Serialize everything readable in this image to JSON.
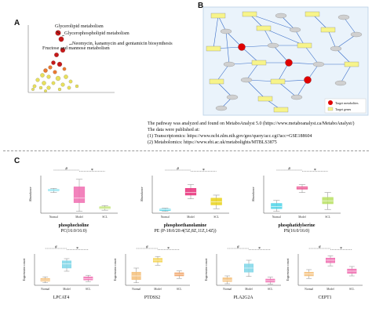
{
  "panels": {
    "a": "A",
    "b": "B",
    "c": "C"
  },
  "panel_a": {
    "annotations": [
      "Glycerolipid metabolism",
      "Glycerophospholipid metabolism",
      "Neomycin, kanamycin and gentamicin biosynthesis",
      "Fructose and mannose metabolism"
    ],
    "colors": {
      "high": "#c00000",
      "mid": "#e86a1a",
      "low": "#e6dd4a"
    }
  },
  "panel_b": {
    "legend": [
      "Target metabolites",
      "Target genes"
    ],
    "colors": {
      "metabolite": "#e00000",
      "gene": "#f7f48a",
      "node": "#d0d0d0",
      "edge": "#3a6ec8",
      "frame": "#cfe2f3"
    }
  },
  "notes": {
    "line1": "The pathway was analyzed and found on MetaboAnalyst 5.0 (https://www.metaboanalyst.ca/MetaboAnalyst/)",
    "line2": "The data were published at:",
    "line3": "(1) Transcriptomics: https://www.ncbi.nlm.nih.gov/geo/query/acc.cgi?acc=GSE188604",
    "line4": "(2) Metabolomics: https://www.ebi.ac.uk/metabolights/MTBLS3875"
  },
  "panel_c": {
    "markers": {
      "hash": "#",
      "star": "*"
    },
    "groups": [
      "Normal",
      "Model",
      "SCL"
    ],
    "charts": [
      {
        "title": "phosphocholine",
        "title2": "PC(16:0/16:0)",
        "ylabel": "Abundance",
        "colors": [
          "#4fd3e8",
          "#f06db0",
          "#b8e063"
        ],
        "boxes": [
          [
            0.55,
            0.6,
            0.62,
            0.63,
            0.66
          ],
          [
            0.05,
            0.28,
            0.4,
            0.7,
            0.9
          ],
          [
            0.08,
            0.12,
            0.14,
            0.17,
            0.2
          ]
        ]
      },
      {
        "title": "phosphoethanolamine",
        "title2": "PE (P-18:0/20:4(5Z,8Z,11Z,14Z))",
        "ylabel": "Abundance",
        "colors": [
          "#4fd3e8",
          "#e8307a",
          "#e9d21a"
        ],
        "boxes": [
          [
            0.05,
            0.07,
            0.09,
            0.11,
            0.13
          ],
          [
            0.38,
            0.48,
            0.55,
            0.66,
            0.76
          ],
          [
            0.12,
            0.22,
            0.3,
            0.4,
            0.48
          ]
        ]
      },
      {
        "title": "phosphatidylserine",
        "title2": "PS(16:0/16:0)",
        "ylabel": "Abundance",
        "colors": [
          "#4fd3e8",
          "#e8307a",
          "#b8e063"
        ],
        "boxes": [
          [
            0.05,
            0.12,
            0.18,
            0.26,
            0.34
          ],
          [
            0.55,
            0.64,
            0.67,
            0.7,
            0.76
          ],
          [
            0.1,
            0.25,
            0.33,
            0.42,
            0.55
          ]
        ]
      },
      {
        "title": "LPCAT4",
        "title2": "",
        "ylabel": "Expression count",
        "colors": [
          "#f4bf7a",
          "#7fd6e8",
          "#f06db0"
        ],
        "boxes": [
          [
            0.08,
            0.13,
            0.17,
            0.22,
            0.27
          ],
          [
            0.45,
            0.55,
            0.68,
            0.78,
            0.85
          ],
          [
            0.12,
            0.17,
            0.22,
            0.27,
            0.32
          ]
        ]
      },
      {
        "title": "PTDSS2",
        "title2": "",
        "ylabel": "Expression count",
        "colors": [
          "#f4bf7a",
          "#f4d24a",
          "#f0a060"
        ],
        "boxes": [
          [
            0.08,
            0.18,
            0.3,
            0.42,
            0.55
          ],
          [
            0.64,
            0.74,
            0.8,
            0.86,
            0.92
          ],
          [
            0.22,
            0.3,
            0.35,
            0.4,
            0.46
          ]
        ]
      },
      {
        "title": "PLA2G2A",
        "title2": "",
        "ylabel": "Expression count",
        "colors": [
          "#f4bf7a",
          "#7fd6e8",
          "#f06db0"
        ],
        "boxes": [
          [
            0.05,
            0.12,
            0.17,
            0.24,
            0.3
          ],
          [
            0.28,
            0.42,
            0.55,
            0.68,
            0.8
          ],
          [
            0.04,
            0.1,
            0.15,
            0.2,
            0.26
          ]
        ]
      },
      {
        "title": "CEPT1",
        "title2": "",
        "ylabel": "Expression count",
        "colors": [
          "#f4bf7a",
          "#f06db0",
          "#f06db0"
        ],
        "boxes": [
          [
            0.22,
            0.3,
            0.36,
            0.42,
            0.5
          ],
          [
            0.62,
            0.72,
            0.8,
            0.87,
            0.94
          ],
          [
            0.3,
            0.38,
            0.45,
            0.52,
            0.6
          ]
        ]
      }
    ]
  }
}
